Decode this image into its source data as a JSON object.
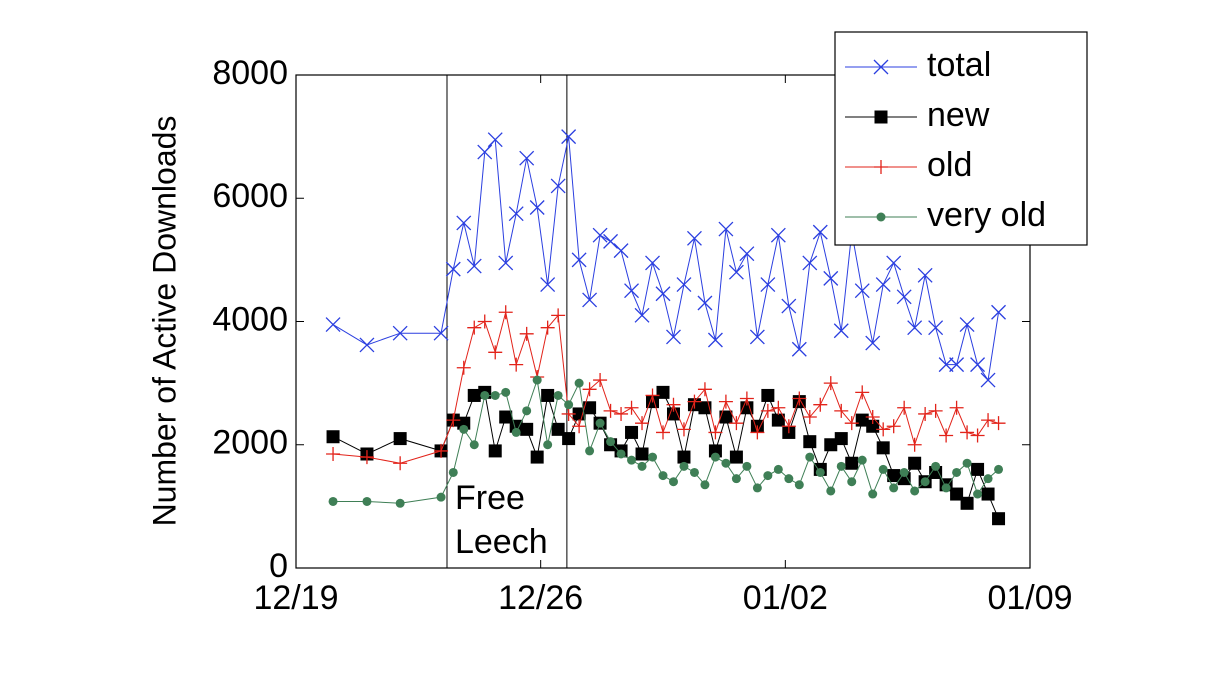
{
  "chart_data": {
    "type": "line",
    "ylabel": "Number of Active Downloads",
    "x": [
      1.06,
      2.03,
      2.98,
      4.15,
      4.5,
      4.8,
      5.1,
      5.4,
      5.7,
      6.0,
      6.3,
      6.6,
      6.9,
      7.2,
      7.5,
      7.8,
      8.1,
      8.4,
      8.7,
      9.0,
      9.3,
      9.6,
      9.9,
      10.2,
      10.5,
      10.8,
      11.1,
      11.4,
      11.7,
      12.0,
      12.3,
      12.6,
      12.9,
      13.2,
      13.5,
      13.8,
      14.1,
      14.4,
      14.7,
      15.0,
      15.3,
      15.6,
      15.9,
      16.2,
      16.5,
      16.8,
      17.1,
      17.4,
      17.7,
      18.0,
      18.3,
      18.6,
      18.9,
      19.2,
      19.5,
      19.8,
      20.1
    ],
    "series": [
      {
        "name": "total",
        "color": "#2b3fe0",
        "marker": "x",
        "values": [
          3950,
          3620,
          3810,
          3810,
          4850,
          5600,
          4900,
          6750,
          6950,
          4950,
          5750,
          6650,
          5850,
          4600,
          6200,
          7000,
          5000,
          4350,
          5400,
          5300,
          5150,
          4500,
          4100,
          4950,
          4450,
          3750,
          4600,
          5350,
          4300,
          3700,
          5500,
          4800,
          5100,
          3750,
          4600,
          5400,
          4250,
          3550,
          4950,
          5450,
          4700,
          3850,
          5450,
          4500,
          3650,
          4600,
          4950,
          4400,
          3900,
          4750,
          3900,
          3300,
          3300,
          3950,
          3300,
          3050,
          4150
        ]
      },
      {
        "name": "new",
        "color": "#000000",
        "marker": "square",
        "values": [
          2130,
          1850,
          2100,
          1900,
          2400,
          2350,
          2800,
          2850,
          1900,
          2450,
          2300,
          2250,
          1800,
          2800,
          2250,
          2100,
          2500,
          2600,
          2350,
          2000,
          1900,
          2200,
          1850,
          2700,
          2850,
          2500,
          1800,
          2650,
          2600,
          1900,
          2450,
          1800,
          2600,
          2300,
          2800,
          2400,
          2200,
          2700,
          2050,
          1600,
          2000,
          2100,
          1700,
          2400,
          2300,
          1950,
          1500,
          1450,
          1700,
          1400,
          1550,
          1350,
          1200,
          1050,
          1600,
          1200,
          800
        ]
      },
      {
        "name": "old",
        "color": "#e2231a",
        "marker": "plus",
        "values": [
          1850,
          1800,
          1700,
          1900,
          2400,
          3250,
          3900,
          4000,
          3500,
          4150,
          3300,
          3800,
          3100,
          3900,
          4100,
          2500,
          2300,
          2900,
          3050,
          2550,
          2500,
          2600,
          2350,
          2800,
          2200,
          2650,
          2250,
          2700,
          2900,
          2200,
          2700,
          2350,
          2750,
          2200,
          2550,
          2600,
          2300,
          2750,
          2450,
          2650,
          3000,
          2550,
          2350,
          2850,
          2450,
          2250,
          2300,
          2600,
          2000,
          2500,
          2550,
          2150,
          2600,
          2200,
          2150,
          2400,
          2350
        ]
      },
      {
        "name": "very old",
        "color": "#3f7f56",
        "marker": "circle",
        "values": [
          1080,
          1080,
          1050,
          1150,
          1550,
          2250,
          2000,
          2800,
          2800,
          2850,
          2200,
          2550,
          3050,
          2000,
          2800,
          2650,
          3000,
          1900,
          2350,
          2050,
          1850,
          1750,
          1650,
          1800,
          1500,
          1400,
          1650,
          1550,
          1350,
          1800,
          1700,
          1450,
          1650,
          1300,
          1500,
          1600,
          1450,
          1350,
          1800,
          1550,
          1250,
          1650,
          1400,
          1750,
          1200,
          1600,
          1300,
          1550,
          1250,
          1400,
          1650,
          1300,
          1550,
          1700,
          1200,
          1450,
          1600
        ]
      }
    ],
    "xlim": [
      0,
      21
    ],
    "xticks": [
      {
        "value": 0,
        "label": "12/19"
      },
      {
        "value": 7,
        "label": "12/26"
      },
      {
        "value": 14,
        "label": "01/02"
      },
      {
        "value": 21,
        "label": "01/09"
      }
    ],
    "ylim": [
      0,
      8000
    ],
    "yticks": [
      0,
      2000,
      4000,
      6000,
      8000
    ],
    "grid": false,
    "legend": "upper right",
    "annotations": [
      {
        "lines": [
          "Free",
          "Leech"
        ],
        "x": [
          4.32,
          7.75
        ]
      }
    ]
  }
}
